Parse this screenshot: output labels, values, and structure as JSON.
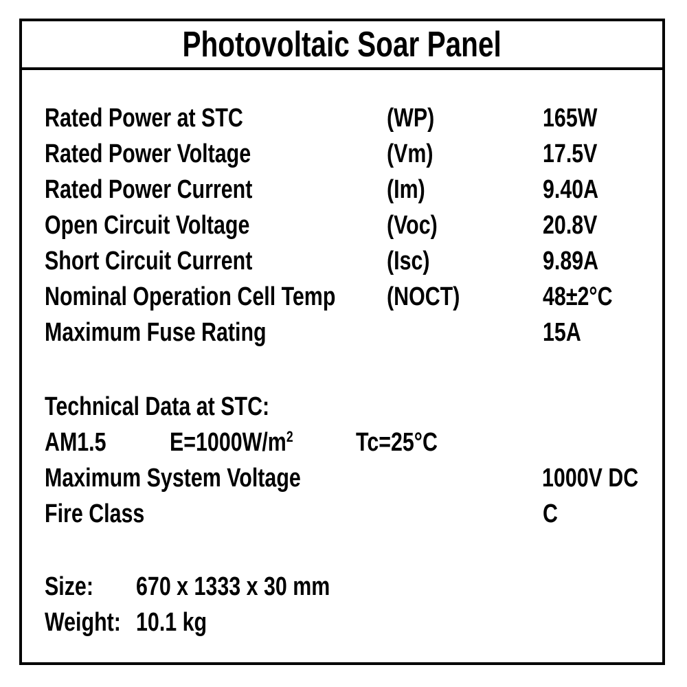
{
  "label": {
    "title": "Photovoltaic Soar Panel",
    "specs": [
      {
        "label": "Rated Power at STC",
        "code": "(WP)",
        "value": "165W"
      },
      {
        "label": "Rated Power Voltage",
        "code": "(Vm)",
        "value": "17.5V"
      },
      {
        "label": "Rated Power Current",
        "code": "(Im)",
        "value": "9.40A"
      },
      {
        "label": "Open Circuit Voltage",
        "code": "(Voc)",
        "value": "20.8V"
      },
      {
        "label": "Short Circuit Current",
        "code": "(Isc)",
        "value": "9.89A"
      },
      {
        "label": "Nominal Operation Cell Temp",
        "code": "(NOCT)",
        "value": "48±2°C"
      },
      {
        "label": "Maximum Fuse Rating",
        "code": "",
        "value": "15A"
      }
    ],
    "technical": {
      "heading": "Technical Data at STC:",
      "air_mass": "AM1.5",
      "irradiance_base": "E=1000W/m",
      "irradiance_sup": "2",
      "cell_temp": "Tc=25°C",
      "rows": [
        {
          "label": "Maximum System Voltage",
          "value": "1000V DC"
        },
        {
          "label": "Fire Class",
          "value": "C"
        }
      ]
    },
    "physical": [
      {
        "label": "Size:",
        "value": "670 x 1333 x 30 mm"
      },
      {
        "label": "Weight:",
        "value": "10.1 kg"
      }
    ]
  }
}
